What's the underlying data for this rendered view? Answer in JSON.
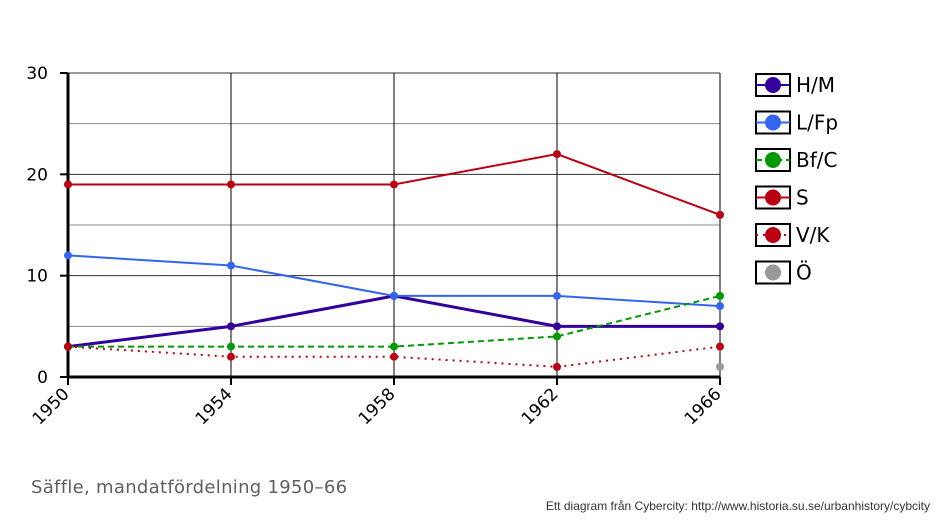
{
  "chart_data": {
    "type": "line",
    "title": "Säffle, mandatfördelning 1950–66",
    "xlabel": "",
    "ylabel": "",
    "x": [
      "1950",
      "1954",
      "1958",
      "1962",
      "1966"
    ],
    "ylim": [
      0,
      30
    ],
    "yticks": [
      "0",
      "10",
      "20",
      "30"
    ],
    "grid": true,
    "legend": "right",
    "series": [
      {
        "name": "H/M",
        "color": "#33009c",
        "style": "solid",
        "values": [
          3,
          5,
          8,
          5,
          5
        ]
      },
      {
        "name": "L/Fp",
        "color": "#3366ee",
        "style": "solid",
        "values": [
          12,
          11,
          8,
          8,
          7
        ]
      },
      {
        "name": "Bf/C",
        "color": "#009900",
        "style": "dashed",
        "values": [
          3,
          3,
          3,
          4,
          8
        ]
      },
      {
        "name": "S",
        "color": "#bb0011",
        "style": "solid",
        "values": [
          19,
          19,
          19,
          22,
          16
        ]
      },
      {
        "name": "V/K",
        "color": "#bb0011",
        "style": "dotted",
        "values": [
          3,
          2,
          2,
          1,
          3
        ]
      },
      {
        "name": "Ö",
        "color": "#999999",
        "style": "none",
        "values": [
          null,
          null,
          null,
          null,
          1
        ]
      }
    ]
  },
  "credit": "Ett diagram från Cybercity: http://www.historia.su.se/urbanhistory/cybcity"
}
